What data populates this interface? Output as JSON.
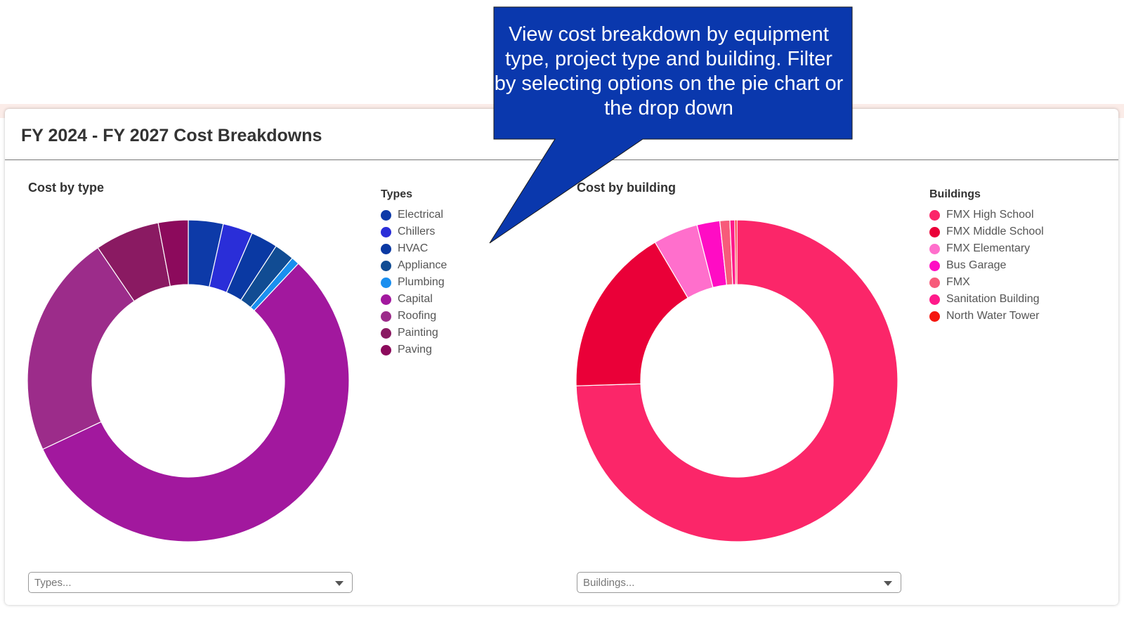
{
  "card": {
    "title": "FY 2024 - FY 2027 Cost Breakdowns"
  },
  "callout": {
    "text": "View cost breakdown by equipment type, project type and building. Filter by selecting options on the pie chart or the drop down",
    "color": "#0a38ad"
  },
  "left_filter": {
    "placeholder": "Types..."
  },
  "right_filter": {
    "placeholder": "Buildings..."
  },
  "chart_data": [
    {
      "type": "pie",
      "title": "Cost by type",
      "legend_title": "Types",
      "legend_position": "right",
      "categories": [
        "Electrical",
        "Chillers",
        "HVAC",
        "Appliance",
        "Plumbing",
        "Capital",
        "Roofing",
        "Painting",
        "Paving"
      ],
      "values": [
        3.5,
        3.0,
        2.7,
        2.0,
        0.8,
        56.0,
        22.5,
        6.5,
        3.0
      ],
      "colors": [
        "#0d3aa8",
        "#2a2ed8",
        "#0a39a3",
        "#114c93",
        "#1a8fef",
        "#a2189e",
        "#9c2c8a",
        "#8a1a62",
        "#8c0a5c"
      ]
    },
    {
      "type": "pie",
      "title": "Cost by building",
      "legend_title": "Buildings",
      "legend_position": "right",
      "categories": [
        "FMX High School",
        "FMX Middle School",
        "FMX Elementary",
        "Bus Garage",
        "FMX",
        "Sanitation Building",
        "North Water Tower"
      ],
      "values": [
        74.5,
        17.0,
        4.5,
        2.3,
        1.0,
        0.5,
        0.2
      ],
      "colors": [
        "#fb2669",
        "#ea0038",
        "#ff6fcc",
        "#ff0cc4",
        "#f75b7a",
        "#ff1a8a",
        "#f5160f"
      ]
    }
  ]
}
